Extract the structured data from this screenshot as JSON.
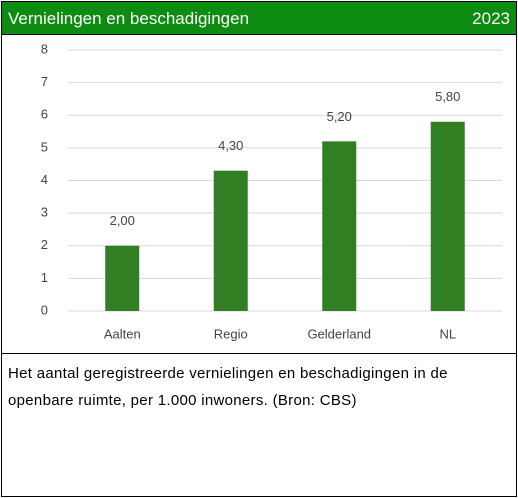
{
  "chart_data": {
    "type": "bar",
    "title": "Vernielingen en beschadigingen",
    "subtitle": "2023",
    "categories": [
      "Aalten",
      "Regio",
      "Gelderland",
      "NL"
    ],
    "values": [
      2,
      4.3,
      5.2,
      5.8
    ],
    "value_labels": [
      "2,00",
      "4,30",
      "5,20",
      "5,80"
    ],
    "color": "#327e23",
    "ylim": [
      0,
      8
    ],
    "yticks": [
      0,
      1,
      2,
      3,
      4,
      5,
      6,
      7,
      8
    ],
    "grid": true,
    "caption": "Het aantal geregistreerde vernielingen en beschadigingen in de openbare ruimte, per 1.000 inwoners. (Bron: CBS)"
  }
}
